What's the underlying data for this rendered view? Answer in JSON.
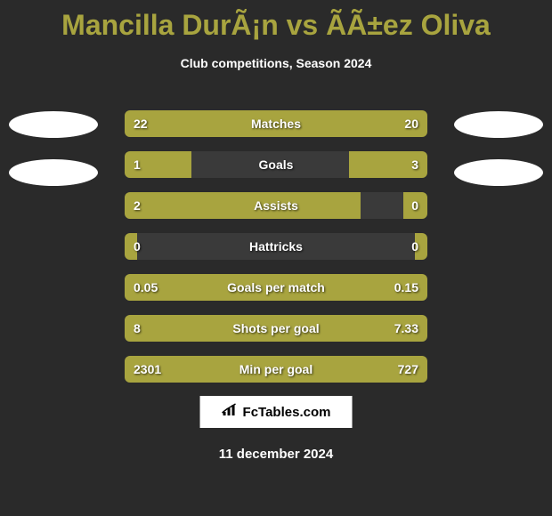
{
  "title": "Mancilla DurÃ¡n vs ÃÃ±ez Oliva",
  "subtitle": "Club competitions, Season 2024",
  "badge_colors": {
    "left_top": "#ffffff",
    "left_bottom": "#ffffff",
    "right_top": "#ffffff",
    "right_bottom": "#ffffff"
  },
  "bar_colors": {
    "left": "#a8a43f",
    "right": "#a8a43f",
    "track": "#3a3a3a"
  },
  "stats": [
    {
      "label": "Matches",
      "left_val": "22",
      "right_val": "20",
      "left_pct": 52,
      "right_pct": 48
    },
    {
      "label": "Goals",
      "left_val": "1",
      "right_val": "3",
      "left_pct": 22,
      "right_pct": 26
    },
    {
      "label": "Assists",
      "left_val": "2",
      "right_val": "0",
      "left_pct": 78,
      "right_pct": 8
    },
    {
      "label": "Hattricks",
      "left_val": "0",
      "right_val": "0",
      "left_pct": 4,
      "right_pct": 4
    },
    {
      "label": "Goals per match",
      "left_val": "0.05",
      "right_val": "0.15",
      "left_pct": 26,
      "right_pct": 74
    },
    {
      "label": "Shots per goal",
      "left_val": "8",
      "right_val": "7.33",
      "left_pct": 52,
      "right_pct": 48
    },
    {
      "label": "Min per goal",
      "left_val": "2301",
      "right_val": "727",
      "left_pct": 76,
      "right_pct": 24
    }
  ],
  "footer": "FcTables.com",
  "date": "11 december 2024"
}
